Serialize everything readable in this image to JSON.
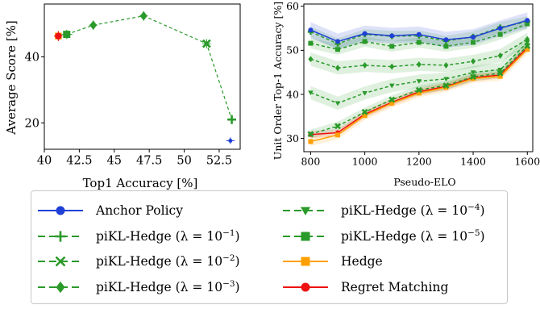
{
  "colors": {
    "blue": "#1f3fd6",
    "green": "#2a9a2a",
    "orange": "#ffa000",
    "red": "#ee1111"
  },
  "chart_data": [
    {
      "type": "scatter",
      "xlabel": "Top1 Accuracy [%]",
      "ylabel": "Average Score [%]",
      "xlim": [
        40,
        54
      ],
      "ylim": [
        12,
        56
      ],
      "xticks": [
        "40",
        "42.5",
        "45",
        "47.5",
        "50",
        "52.5"
      ],
      "xtick_values": [
        40,
        42.5,
        45,
        47.5,
        50,
        52.5
      ],
      "yticks": [
        "20",
        "40"
      ],
      "ytick_values": [
        20,
        40
      ],
      "grid": false,
      "series": [
        {
          "name": "Anchor Policy",
          "color": "blue",
          "marker": "circle",
          "points": [
            [
              53.3,
              14.6
            ]
          ],
          "xerr": 0.3,
          "yerr": 1.0
        },
        {
          "name": "piKL-Hedge (λ = 10⁻⁵)",
          "color": "green",
          "marker": "square",
          "points": [
            [
              41.6,
              46.8
            ]
          ],
          "xerr": 0.4,
          "yerr": 1.2
        },
        {
          "name": "Hedge",
          "color": "orange",
          "marker": "square",
          "points": [
            [
              41.0,
              46.3
            ]
          ],
          "xerr": 0.3,
          "yerr": 1.5
        },
        {
          "name": "Regret Matching",
          "color": "red",
          "marker": "circle",
          "points": [
            [
              41.0,
              46.3
            ]
          ],
          "xerr": 0.3,
          "yerr": 1.5
        }
      ],
      "frontier": {
        "color": "green",
        "points": [
          [
            41.6,
            46.8
          ],
          [
            43.5,
            49.6
          ],
          [
            47.1,
            52.4
          ],
          [
            51.6,
            44.0
          ],
          [
            53.4,
            21.0
          ]
        ],
        "markers": [
          "square",
          "diamond",
          "diamond",
          "x",
          "plus"
        ],
        "xerr": 0.3,
        "yerr": 1.4
      }
    },
    {
      "type": "line",
      "xlabel": "Pseudo-ELO",
      "ylabel": "Unit Order Top-1 Accuracy [%]",
      "xlim": [
        775,
        1620
      ],
      "ylim": [
        27,
        60.5
      ],
      "xticks": [
        "800",
        "1000",
        "1200",
        "1400",
        "1600"
      ],
      "xtick_values": [
        800,
        1000,
        1200,
        1400,
        1600
      ],
      "yticks": [
        "30",
        "40",
        "50",
        "60"
      ],
      "ytick_values": [
        30,
        40,
        50,
        60
      ],
      "grid": false,
      "x": [
        800,
        900,
        1000,
        1100,
        1200,
        1300,
        1400,
        1500,
        1600
      ],
      "series": [
        {
          "name": "Anchor Policy",
          "color": "blue",
          "marker": "circle",
          "style": "solid",
          "band": 1.8,
          "values": [
            54.6,
            52.0,
            53.8,
            53.3,
            53.6,
            52.4,
            53.0,
            55.0,
            56.8
          ]
        },
        {
          "name": "piKL-Hedge (λ = 10⁻⁵)",
          "color": "green",
          "marker": "plus",
          "style": "dashed",
          "band": 1.2,
          "values": [
            54.2,
            51.5,
            53.6,
            53.2,
            53.3,
            52.1,
            53.1,
            55.2,
            56.5
          ]
        },
        {
          "name": "piKL-Hedge (λ = 10⁻⁴)",
          "color": "green",
          "marker": "square",
          "style": "dashed",
          "band": 1.2,
          "values": [
            51.6,
            50.2,
            52.0,
            50.9,
            51.8,
            50.9,
            51.8,
            53.6,
            56.0
          ]
        },
        {
          "name": "piKL-Hedge (λ = 10⁻³)",
          "color": "green",
          "marker": "diamond",
          "style": "dashed",
          "band": 1.5,
          "values": [
            48.0,
            46.0,
            46.6,
            46.3,
            46.8,
            46.6,
            47.5,
            48.8,
            52.5
          ]
        },
        {
          "name": "piKL-Hedge (λ = 10⁻²)",
          "color": "green",
          "marker": "triangle-down",
          "style": "dashed",
          "band": 1.5,
          "values": [
            40.4,
            38.0,
            40.3,
            42.0,
            43.0,
            43.5,
            45.0,
            45.6,
            51.8
          ]
        },
        {
          "name": "piKL-Hedge (λ = 10⁻¹)",
          "color": "green",
          "marker": "x",
          "style": "dashed",
          "band": 1.0,
          "values": [
            31.0,
            32.8,
            36.0,
            38.8,
            41.0,
            42.0,
            44.0,
            44.8,
            51.0
          ]
        },
        {
          "name": "Hedge",
          "color": "orange",
          "marker": "square",
          "style": "solid",
          "band": 1.0,
          "values": [
            29.3,
            30.8,
            35.2,
            38.0,
            40.3,
            41.6,
            43.6,
            44.1,
            50.2
          ]
        },
        {
          "name": "Regret Matching",
          "color": "red",
          "marker": "circle",
          "style": "solid",
          "band": 0.8,
          "values": [
            30.9,
            31.3,
            35.5,
            38.2,
            40.6,
            41.8,
            43.8,
            44.4,
            50.6
          ]
        }
      ]
    }
  ],
  "legend": {
    "items": [
      {
        "label": "Anchor Policy",
        "color": "blue",
        "marker": "circle",
        "style": "solid",
        "col": 0,
        "row": 0
      },
      {
        "label": "piKL-Hedge (λ = 10",
        "exp": "−1",
        "tail": ")",
        "color": "green",
        "marker": "plus",
        "style": "dashed",
        "col": 0,
        "row": 1
      },
      {
        "label": "piKL-Hedge (λ = 10",
        "exp": "−2",
        "tail": ")",
        "color": "green",
        "marker": "x",
        "style": "dashed",
        "col": 0,
        "row": 2
      },
      {
        "label": "piKL-Hedge (λ = 10",
        "exp": "−3",
        "tail": ")",
        "color": "green",
        "marker": "diamond",
        "style": "dashed",
        "col": 0,
        "row": 3
      },
      {
        "label": "piKL-Hedge (λ = 10",
        "exp": "−4",
        "tail": ")",
        "color": "green",
        "marker": "triangle-down",
        "style": "dashed",
        "col": 1,
        "row": 0
      },
      {
        "label": "piKL-Hedge (λ = 10",
        "exp": "−5",
        "tail": ")",
        "color": "green",
        "marker": "square",
        "style": "dashed",
        "col": 1,
        "row": 1
      },
      {
        "label": "Hedge",
        "color": "orange",
        "marker": "square",
        "style": "solid",
        "col": 1,
        "row": 2
      },
      {
        "label": "Regret Matching",
        "color": "red",
        "marker": "circle",
        "style": "solid",
        "col": 1,
        "row": 3
      }
    ]
  }
}
